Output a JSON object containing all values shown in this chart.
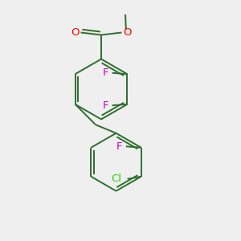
{
  "background_color": "#efefef",
  "bond_color": "#2d6e2d",
  "o_color": "#ff0000",
  "f_color": "#cc00cc",
  "cl_color": "#33cc00",
  "line_width": 1.4,
  "font_size": 9.5,
  "figsize": [
    3.0,
    3.0
  ],
  "dpi": 100,
  "xlim": [
    0,
    10
  ],
  "ylim": [
    0,
    10
  ]
}
